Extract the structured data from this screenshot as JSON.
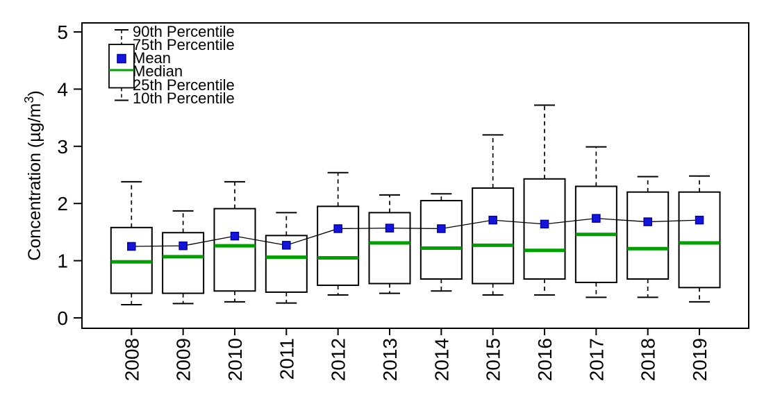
{
  "chart_data": {
    "type": "boxplot",
    "title": "",
    "xlabel": "",
    "ylabel": "Concentration (µg/m³)",
    "ylabel_sup": "3",
    "ylim": [
      0,
      5.16
    ],
    "yticks": [
      0,
      1,
      2,
      3,
      4,
      5
    ],
    "grid": false,
    "legend_position": "top-left-inside",
    "legend_entries": [
      "90th Percentile",
      "75th Percentile",
      "Mean",
      "Median",
      "25th Percentile",
      "10th Percentile"
    ],
    "colors": {
      "median_line": "#00a000",
      "mean_marker_fill": "#1414dc",
      "mean_marker_edge": "#0000a0",
      "box_edge": "#000000",
      "whisker": "#000000",
      "mean_connector": "#000000",
      "axis": "#000000",
      "background": "#ffffff"
    },
    "categories": [
      "2008",
      "2009",
      "2010",
      "2011",
      "2012",
      "2013",
      "2014",
      "2015",
      "2016",
      "2017",
      "2018",
      "2019"
    ],
    "boxes": [
      {
        "year": "2008",
        "p10": 0.23,
        "p25": 0.43,
        "median": 0.98,
        "mean": 1.25,
        "p75": 1.58,
        "p90": 2.38
      },
      {
        "year": "2009",
        "p10": 0.25,
        "p25": 0.43,
        "median": 1.07,
        "mean": 1.26,
        "p75": 1.49,
        "p90": 1.87
      },
      {
        "year": "2010",
        "p10": 0.28,
        "p25": 0.47,
        "median": 1.26,
        "mean": 1.43,
        "p75": 1.91,
        "p90": 2.38
      },
      {
        "year": "2011",
        "p10": 0.26,
        "p25": 0.45,
        "median": 1.06,
        "mean": 1.27,
        "p75": 1.44,
        "p90": 1.84
      },
      {
        "year": "2012",
        "p10": 0.4,
        "p25": 0.57,
        "median": 1.05,
        "mean": 1.56,
        "p75": 1.95,
        "p90": 2.54
      },
      {
        "year": "2013",
        "p10": 0.43,
        "p25": 0.6,
        "median": 1.31,
        "mean": 1.57,
        "p75": 1.84,
        "p90": 2.15
      },
      {
        "year": "2014",
        "p10": 0.47,
        "p25": 0.68,
        "median": 1.22,
        "mean": 1.56,
        "p75": 2.05,
        "p90": 2.17
      },
      {
        "year": "2015",
        "p10": 0.4,
        "p25": 0.6,
        "median": 1.27,
        "mean": 1.71,
        "p75": 2.27,
        "p90": 3.2
      },
      {
        "year": "2016",
        "p10": 0.4,
        "p25": 0.68,
        "median": 1.18,
        "mean": 1.64,
        "p75": 2.43,
        "p90": 3.72
      },
      {
        "year": "2017",
        "p10": 0.36,
        "p25": 0.62,
        "median": 1.46,
        "mean": 1.74,
        "p75": 2.3,
        "p90": 2.99
      },
      {
        "year": "2018",
        "p10": 0.36,
        "p25": 0.68,
        "median": 1.21,
        "mean": 1.68,
        "p75": 2.2,
        "p90": 2.47
      },
      {
        "year": "2019",
        "p10": 0.28,
        "p25": 0.53,
        "median": 1.31,
        "mean": 1.71,
        "p75": 2.2,
        "p90": 2.48
      }
    ]
  }
}
